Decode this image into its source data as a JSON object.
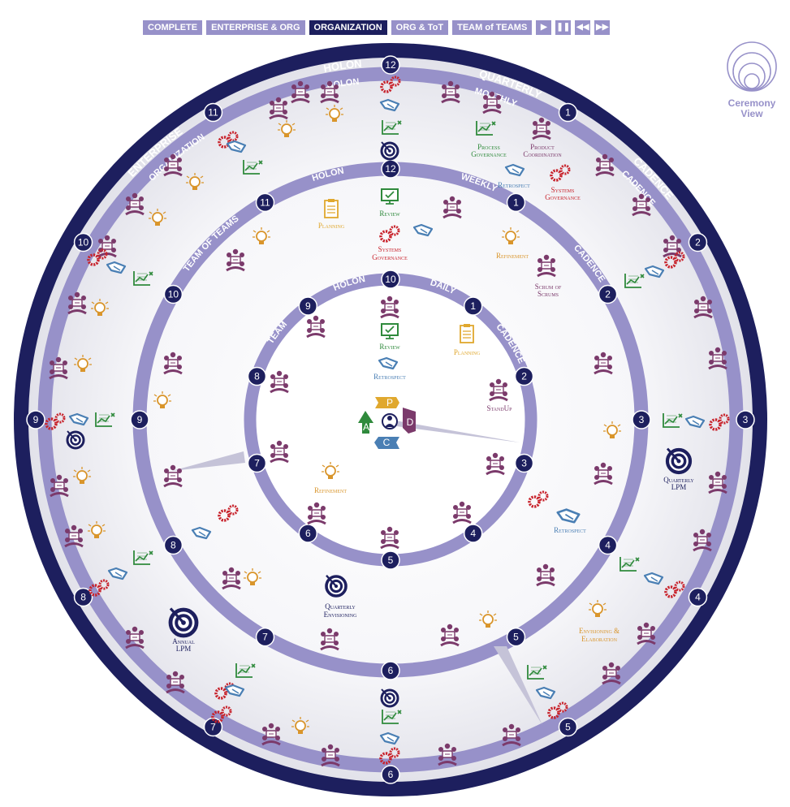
{
  "toolbar": {
    "buttons": [
      "COMPLETE",
      "ENTERPRISE & ORG",
      "ORGANIZATION",
      "ORG & ToT",
      "TEAM of TEAMS"
    ],
    "active": "ORGANIZATION",
    "controls": [
      "play-icon",
      "pause-icon",
      "rewind-icon",
      "fast-forward-icon"
    ]
  },
  "ceremony_view": {
    "label_1": "Ceremony",
    "label_2": "View",
    "icon": "concentric-circles-icon"
  },
  "rings": {
    "outer": {
      "left_label": "ENTERPRISE",
      "top_label": "HOLON",
      "right_label": "QUARTERLY",
      "cadence": "CADENCE",
      "numbers": [
        "12",
        "1",
        "2",
        "3",
        "4",
        "5",
        "6",
        "7",
        "8",
        "9",
        "10",
        "11"
      ]
    },
    "org": {
      "left_label": "ORGANIZATION",
      "top_label": "HOLON",
      "right_label": "MONTHLY",
      "cadence": "CADENCE"
    },
    "tot": {
      "left_label": "TEAM OF TEAMS",
      "top_label": "HOLON",
      "right_label": "WEEKLY",
      "cadence": "CADENCE",
      "numbers": [
        "12",
        "1",
        "2",
        "3",
        "4",
        "5",
        "6",
        "7",
        "8",
        "9",
        "10",
        "11"
      ]
    },
    "team": {
      "left_label": "TEAM",
      "top_label": "HOLON",
      "right_label": "DAILY",
      "cadence": "CADENCE",
      "numbers": [
        "10",
        "1",
        "2",
        "3",
        "4",
        "5",
        "6",
        "7",
        "8",
        "9"
      ]
    }
  },
  "labels": {
    "process_governance_1": "Process",
    "process_governance_2": "Governance",
    "product_coordination_1": "Product",
    "product_coordination_2": "Coordination",
    "retrospect_org": "Retrospect",
    "systems_governance_org_1": "Systems",
    "systems_governance_org_2": "Governance",
    "planning_tot": "Planning",
    "review_tot": "Review",
    "systems_governance_tot_1": "Systems",
    "systems_governance_tot_2": "Governance",
    "refinement_tot": "Refinement",
    "scrum_of_scrums_1": "Scrum of",
    "scrum_of_scrums_2": "Scrums",
    "review_team": "Review",
    "planning_team": "Planning",
    "retrospect_team": "Retrospect",
    "standup": "StandUp",
    "refinement_team": "Refinement",
    "quarterly_lpm_1": "Quarterly",
    "quarterly_lpm_2": "LPM",
    "retrospect_tot": "Retrospect",
    "quarterly_envisioning_1": "Quarterly",
    "quarterly_envisioning_2": "Envisioning",
    "annual_lpm_1": "Annual",
    "annual_lpm_2": "LPM",
    "envisioning_1": "Envisioning &",
    "envisioning_2": "Elaboration"
  },
  "center_letters": [
    "P",
    "D",
    "C",
    "A"
  ],
  "colors": {
    "navy": "#1d1f5e",
    "lavender": "#9791c9",
    "people": "#7b3a6b",
    "gears": "#c8232c",
    "handshake": "#4a7fb4",
    "chart": "#2f8a3c",
    "bulb": "#d9952b",
    "planning": "#e0a82e",
    "review": "#2f8a3c",
    "retro": "#4a7fb4"
  }
}
